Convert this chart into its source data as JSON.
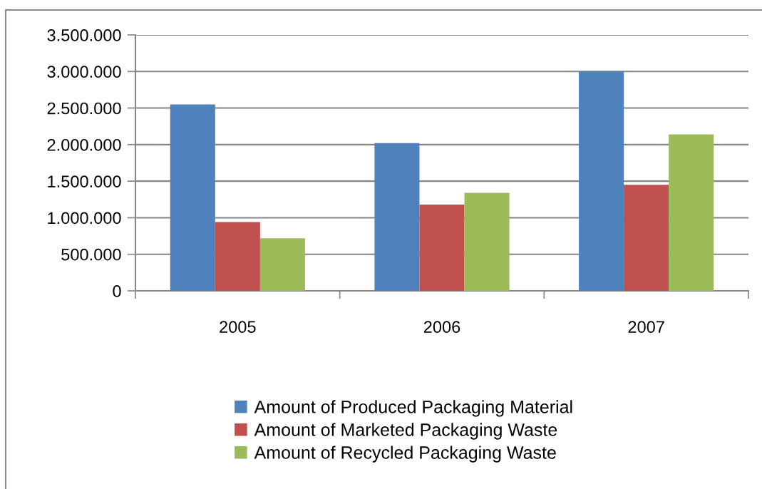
{
  "chart_data": {
    "type": "bar",
    "categories": [
      "2005",
      "2006",
      "2007"
    ],
    "series": [
      {
        "name": "Amount of Produced Packaging Material",
        "color": "#4f81bd",
        "values": [
          2550000,
          2020000,
          3000000
        ]
      },
      {
        "name": "Amount of Marketed Packaging Waste",
        "color": "#c0504d",
        "values": [
          940000,
          1180000,
          1450000
        ]
      },
      {
        "name": "Amount of Recycled Packaging Waste",
        "color": "#9bbb59",
        "values": [
          720000,
          1340000,
          2140000
        ]
      }
    ],
    "ylim": [
      0,
      3500000
    ],
    "yticks": [
      0,
      {
        "value": 500000,
        "label": "500.000"
      },
      {
        "value": 1000000,
        "label": "1.000.000"
      },
      {
        "value": 1500000,
        "label": "1.500.000"
      },
      {
        "value": 2000000,
        "label": "2.000.000"
      },
      {
        "value": 2500000,
        "label": "2.500.000"
      },
      {
        "value": 3000000,
        "label": "3.000.000"
      },
      {
        "value": 3500000,
        "label": "3.500.000"
      }
    ],
    "grid": "y",
    "legend": "bottom"
  }
}
